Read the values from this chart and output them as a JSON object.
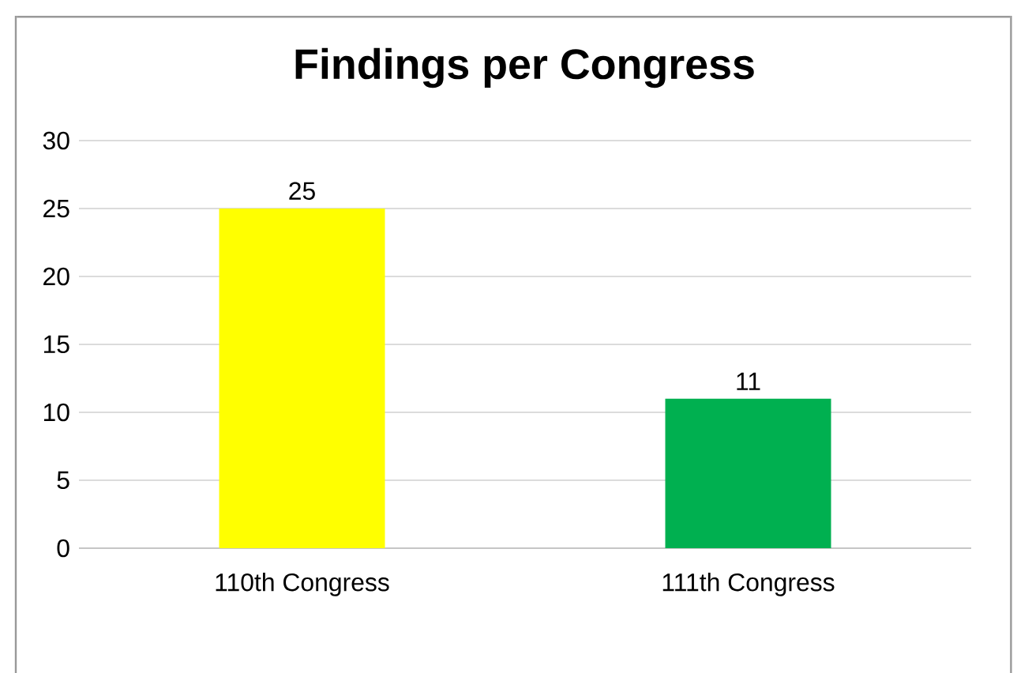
{
  "chart_data": {
    "type": "bar",
    "title": "Findings per Congress",
    "categories": [
      "110th Congress",
      "111th Congress"
    ],
    "values": [
      25,
      11
    ],
    "colors": [
      "#ffff00",
      "#00b050"
    ],
    "ylim": [
      0,
      30
    ],
    "yticks": [
      0,
      5,
      10,
      15,
      20,
      25,
      30
    ],
    "grid": "y",
    "data_labels": true
  }
}
